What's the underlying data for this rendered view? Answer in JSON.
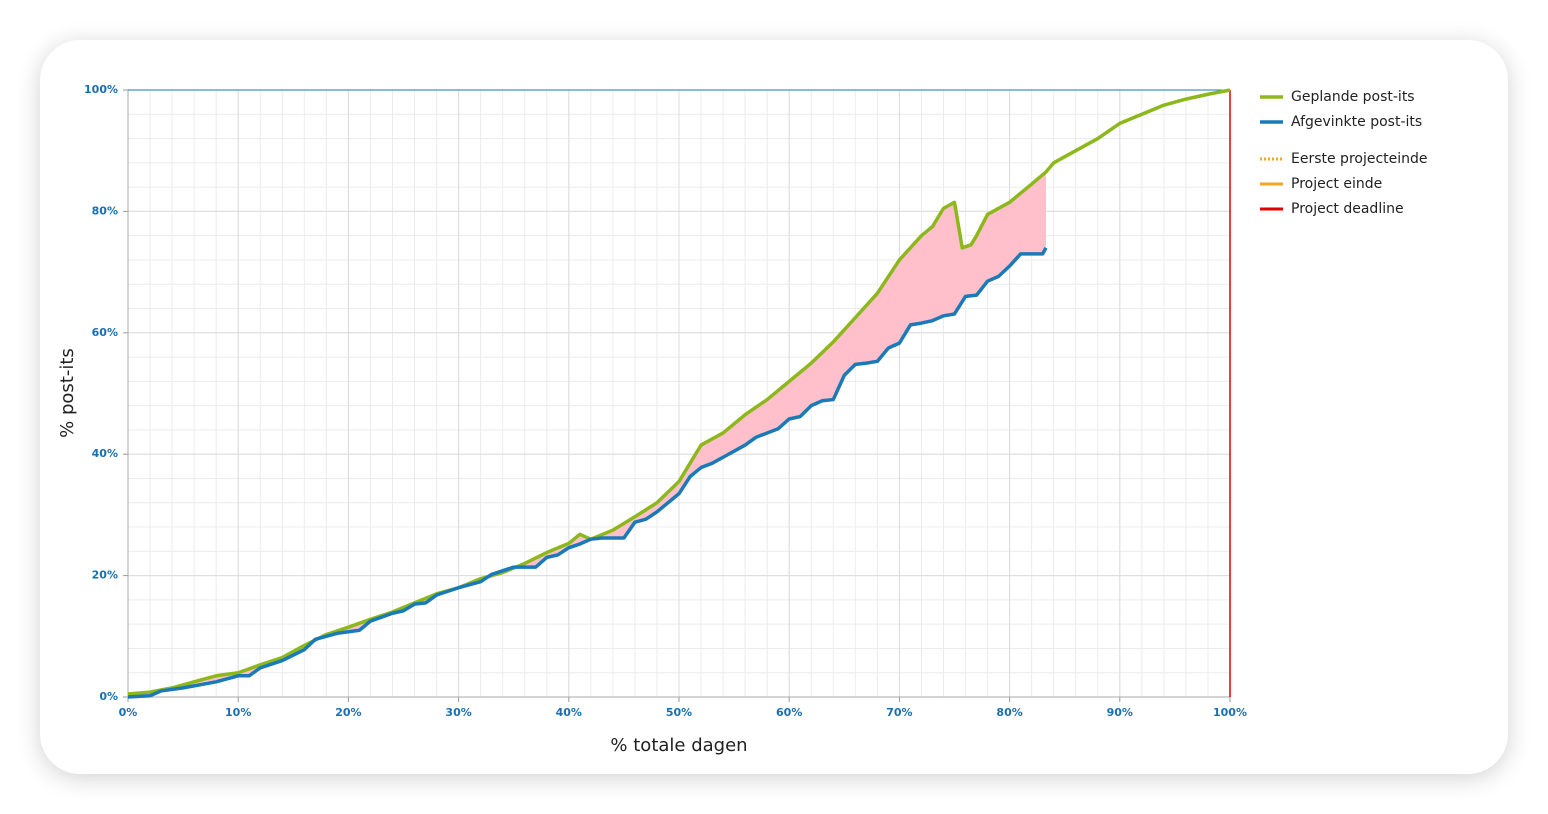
{
  "chart_data": {
    "type": "line",
    "x_label": "% totale dagen",
    "y_label": "% post-its",
    "xlim": [
      0,
      100
    ],
    "ylim": [
      0,
      100
    ],
    "xticks": [
      {
        "value": 0,
        "label": "0%"
      },
      {
        "value": 10,
        "label": "10%"
      },
      {
        "value": 20,
        "label": "20%"
      },
      {
        "value": 30,
        "label": "30%"
      },
      {
        "value": 40,
        "label": "40%"
      },
      {
        "value": 50,
        "label": "50%"
      },
      {
        "value": 60,
        "label": "60%"
      },
      {
        "value": 70,
        "label": "70%"
      },
      {
        "value": 80,
        "label": "80%"
      },
      {
        "value": 90,
        "label": "90%"
      },
      {
        "value": 100,
        "label": "100%"
      }
    ],
    "yticks": [
      {
        "value": 0,
        "label": "0%"
      },
      {
        "value": 20,
        "label": "20%"
      },
      {
        "value": 40,
        "label": "40%"
      },
      {
        "value": 60,
        "label": "60%"
      },
      {
        "value": 80,
        "label": "80%"
      },
      {
        "value": 100,
        "label": "100%"
      }
    ],
    "grid": true,
    "minor_grid": {
      "x": 2,
      "y": 4
    },
    "gap_fill": "#ffc0cb",
    "series": [
      {
        "name": "Geplande post-its",
        "color": "#8cb81c",
        "x": [
          0,
          2,
          4,
          6,
          8,
          10,
          12,
          14,
          16,
          18,
          20,
          22,
          24,
          26,
          28,
          30,
          32,
          34,
          36,
          38,
          40,
          41,
          42,
          44,
          46,
          48,
          50,
          51,
          52,
          54,
          56,
          58,
          60,
          62,
          64,
          66,
          68,
          70,
          72,
          73,
          74,
          75,
          75.7,
          76.5,
          77,
          78,
          80,
          82,
          83.3,
          84,
          86,
          88,
          90,
          92,
          94,
          96,
          98,
          100
        ],
        "values": [
          0.5,
          0.8,
          1.5,
          2.5,
          3.5,
          4,
          5.3,
          6.5,
          8.5,
          10.3,
          11.5,
          12.8,
          14,
          15.5,
          17,
          18,
          19.5,
          20.5,
          22,
          23.8,
          25.3,
          26.8,
          26,
          27.5,
          29.7,
          32,
          35.5,
          38.5,
          41.5,
          43.5,
          46.5,
          49,
          52,
          55,
          58.5,
          62.5,
          66.5,
          72,
          76,
          77.5,
          80.5,
          81.5,
          74,
          74.5,
          76,
          79.5,
          81.5,
          84.5,
          86.5,
          88,
          90,
          92,
          94.5,
          96,
          97.5,
          98.5,
          99.3,
          100
        ]
      },
      {
        "name": "Afgevinkte post-its",
        "color": "#1a7ab8",
        "x": [
          0,
          2,
          3,
          5,
          8,
          10,
          11,
          12,
          14,
          16,
          17,
          19,
          21,
          22,
          24,
          25,
          26,
          27,
          28,
          30,
          32,
          33,
          35,
          37,
          38,
          39,
          40,
          41,
          42,
          43,
          45,
          46,
          47,
          48,
          50,
          51,
          52,
          53,
          54,
          55,
          56,
          57,
          59,
          60,
          61,
          62,
          63,
          64,
          65,
          66,
          67,
          68,
          69,
          70,
          71,
          72,
          73,
          74,
          75,
          76,
          77,
          78,
          79,
          80,
          81,
          82,
          83,
          83.3
        ],
        "values": [
          0,
          0.2,
          1,
          1.5,
          2.5,
          3.5,
          3.5,
          4.8,
          6,
          7.8,
          9.5,
          10.5,
          11,
          12.5,
          13.8,
          14.2,
          15.3,
          15.5,
          16.8,
          18,
          19,
          20.2,
          21.4,
          21.4,
          23,
          23.4,
          24.6,
          25.2,
          26,
          26.2,
          26.2,
          28.8,
          29.3,
          30.5,
          33.5,
          36.3,
          37.8,
          38.5,
          39.5,
          40.5,
          41.5,
          42.8,
          44.2,
          45.8,
          46.2,
          48,
          48.8,
          49,
          53,
          54.8,
          55,
          55.3,
          57.5,
          58.3,
          61.3,
          61.6,
          62,
          62.8,
          63.1,
          66,
          66.2,
          68.5,
          69.3,
          71,
          73,
          73,
          73,
          74
        ]
      }
    ],
    "markers": [
      {
        "name": "Eerste projecteinde",
        "color": "#f5a623",
        "dash": true
      },
      {
        "name": "Project einde",
        "color": "#f5a623"
      },
      {
        "name": "Project deadline",
        "color": "#e00000",
        "x": 100
      }
    ]
  }
}
